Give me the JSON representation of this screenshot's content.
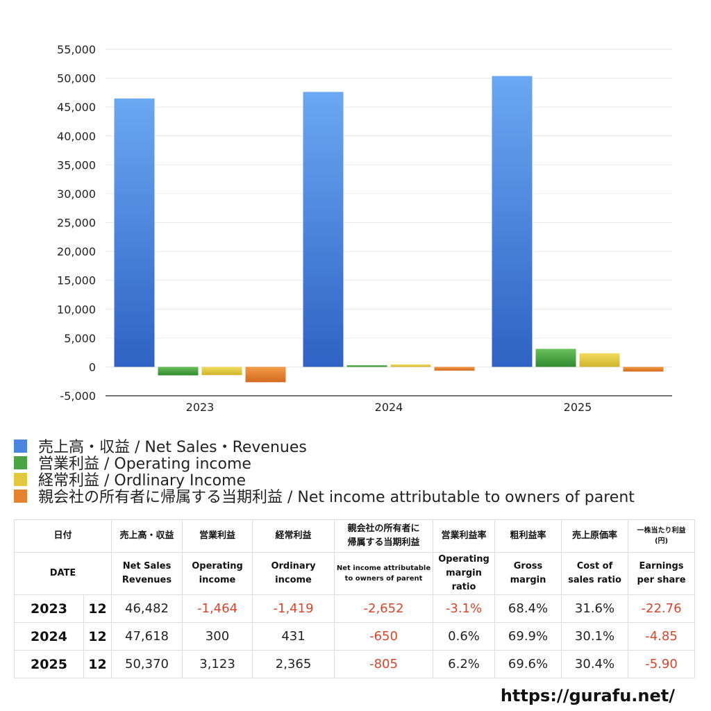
{
  "chart_data": {
    "type": "bar",
    "categories": [
      "2023",
      "2024",
      "2025"
    ],
    "ylim": [
      -5000,
      55000
    ],
    "yticks": [
      55000,
      50000,
      45000,
      40000,
      35000,
      30000,
      25000,
      20000,
      15000,
      10000,
      5000,
      0,
      -5000
    ],
    "ytick_labels": [
      "55,000",
      "50,000",
      "45,000",
      "40,000",
      "35,000",
      "30,000",
      "25,000",
      "20,000",
      "15,000",
      "10,000",
      "5,000",
      "0",
      "-5,000"
    ],
    "series": [
      {
        "name": "売上高・収益 / Net Sales・Revenues",
        "values": [
          46482,
          47618,
          50370
        ],
        "color_top": "#6aa8f2",
        "color_bottom": "#2f62c4"
      },
      {
        "name": "営業利益 / Operating income",
        "values": [
          -1464,
          300,
          3123
        ],
        "color_top": "#6abf5b",
        "color_bottom": "#2f8a2f"
      },
      {
        "name": "経常利益 / Ordlinary Income",
        "values": [
          -1419,
          431,
          2365
        ],
        "color_top": "#f0dc60",
        "color_bottom": "#d0b328"
      },
      {
        "name": "親会社の所有者に帰属する当期利益 / Net income attributable to owners of parent",
        "values": [
          -2652,
          -650,
          -805
        ],
        "color_top": "#f29a46",
        "color_bottom": "#d26a1f"
      }
    ]
  },
  "legend": [
    {
      "label": "売上高・収益 / Net Sales・Revenues",
      "color": "#4a86e0"
    },
    {
      "label": "営業利益 / Operating income",
      "color": "#4aa444"
    },
    {
      "label": "経常利益 / Ordlinary Income",
      "color": "#e2c83e"
    },
    {
      "label": "親会社の所有者に帰属する当期利益 / Net income attributable to owners of parent",
      "color": "#e6822f"
    }
  ],
  "table": {
    "header_jp": {
      "date": "日付",
      "sales": "売上高・収益",
      "op": "営業利益",
      "ord": "経常利益",
      "net_l1": "親会社の所有者に",
      "net_l2": "帰属する当期利益",
      "opm": "営業利益率",
      "gross": "粗利益率",
      "cost": "売上原価率",
      "eps_l1": "一株当たり利益",
      "eps_l2": "(円)"
    },
    "header_en": {
      "date": "DATE",
      "sales_l1": "Net Sales",
      "sales_l2": "Revenues",
      "op_l1": "Operating",
      "op_l2": "income",
      "ord_l1": "Ordinary",
      "ord_l2": "income",
      "net_l1": "Net income attributable",
      "net_l2": "to owners of parent",
      "opm_l1": "Operating",
      "opm_l2": "margin",
      "opm_l3": "ratio",
      "gross_l1": "Gross",
      "gross_l2": "margin",
      "cost_l1": "Cost of",
      "cost_l2": "sales ratio",
      "eps_l1": "Earnings",
      "eps_l2": "per share"
    },
    "rows": [
      {
        "year": "2023",
        "month": "12",
        "sales": "46,482",
        "op": "-1,464",
        "ord": "-1,419",
        "net": "-2,652",
        "opm": "-3.1%",
        "gross": "68.4%",
        "cost": "31.6%",
        "eps": "-22.76"
      },
      {
        "year": "2024",
        "month": "12",
        "sales": "47,618",
        "op": "300",
        "ord": "431",
        "net": "-650",
        "opm": "0.6%",
        "gross": "69.9%",
        "cost": "30.1%",
        "eps": "-4.85"
      },
      {
        "year": "2025",
        "month": "12",
        "sales": "50,370",
        "op": "3,123",
        "ord": "2,365",
        "net": "-805",
        "opm": "6.2%",
        "gross": "69.6%",
        "cost": "30.4%",
        "eps": "-5.90"
      }
    ]
  },
  "footer": {
    "url": "https://gurafu.net/"
  }
}
